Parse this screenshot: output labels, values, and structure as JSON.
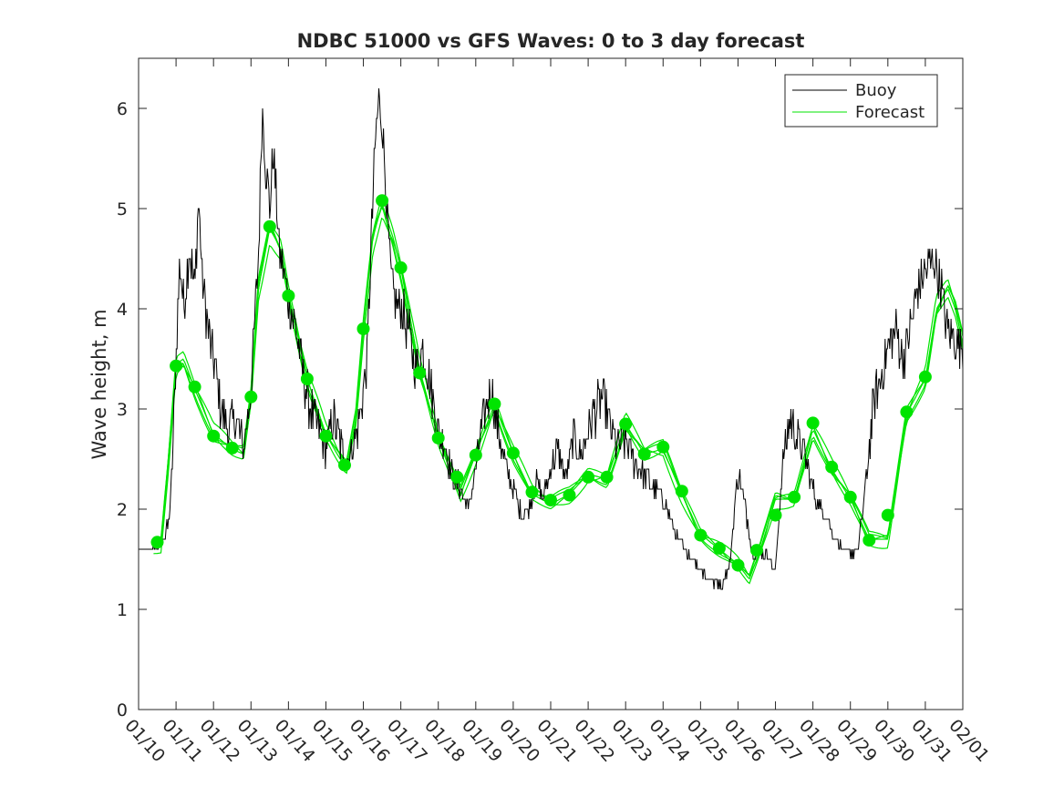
{
  "chart_data": {
    "type": "line",
    "title": "NDBC 51000 vs GFS Waves: 0 to 3 day forecast",
    "xlabel": "",
    "ylabel": "Wave height, m",
    "xlim": [
      0,
      22
    ],
    "ylim": [
      0,
      6.5
    ],
    "grid": false,
    "legend_location": "top-right",
    "categories": [
      "01/10",
      "01/11",
      "01/12",
      "01/13",
      "01/14",
      "01/15",
      "01/16",
      "01/17",
      "01/18",
      "01/19",
      "01/20",
      "01/21",
      "01/22",
      "01/23",
      "01/24",
      "01/25",
      "01/26",
      "01/27",
      "01/28",
      "01/29",
      "01/30",
      "01/31",
      "02/01"
    ],
    "yticks": [
      0,
      1,
      2,
      3,
      4,
      5,
      6
    ],
    "legend": [
      "Buoy",
      "Forecast"
    ],
    "series": [
      {
        "name": "Buoy",
        "color": "#000000",
        "x": [
          0,
          0.3,
          0.5,
          0.7,
          0.85,
          1.0,
          1.1,
          1.2,
          1.35,
          1.5,
          1.6,
          1.7,
          1.85,
          2.0,
          2.2,
          2.4,
          2.6,
          2.8,
          3.0,
          3.2,
          3.3,
          3.4,
          3.5,
          3.6,
          3.75,
          3.9,
          4.0,
          4.2,
          4.4,
          4.6,
          4.8,
          5.0,
          5.2,
          5.35,
          5.5,
          5.7,
          5.9,
          6.1,
          6.2,
          6.3,
          6.4,
          6.5,
          6.6,
          6.7,
          6.8,
          7.0,
          7.2,
          7.4,
          7.6,
          7.8,
          8.0,
          8.2,
          8.4,
          8.6,
          8.8,
          9.0,
          9.2,
          9.4,
          9.6,
          9.8,
          10.0,
          10.2,
          10.4,
          10.6,
          10.8,
          11.0,
          11.2,
          11.4,
          11.6,
          11.8,
          12.0,
          12.2,
          12.4,
          12.6,
          12.8,
          13.0,
          13.2,
          13.4,
          13.6,
          13.8,
          14.0,
          14.2,
          14.4,
          14.6,
          14.8,
          15.0,
          15.2,
          15.4,
          15.6,
          15.8,
          16.0,
          16.2,
          16.4,
          16.6,
          16.8,
          17.0,
          17.2,
          17.4,
          17.6,
          17.8,
          18.0,
          18.2,
          18.4,
          18.6,
          18.8,
          19.0,
          19.2,
          19.4,
          19.6,
          19.8,
          20.0,
          20.2,
          20.4,
          20.6,
          20.8,
          21.0,
          21.2,
          21.4,
          21.5,
          21.6,
          21.8,
          22.0
        ],
        "y": [
          1.6,
          1.6,
          1.65,
          1.7,
          2.0,
          3.5,
          4.5,
          4.0,
          4.6,
          4.2,
          5.1,
          4.3,
          3.8,
          3.5,
          3.0,
          2.8,
          2.9,
          2.6,
          3.2,
          4.5,
          6.0,
          5.4,
          5.0,
          5.6,
          4.6,
          4.3,
          4.1,
          3.8,
          3.3,
          3.0,
          2.8,
          2.6,
          2.9,
          2.7,
          2.5,
          2.6,
          2.9,
          3.5,
          4.6,
          5.5,
          6.1,
          5.9,
          5.2,
          4.5,
          4.1,
          4.0,
          3.8,
          3.4,
          3.6,
          3.2,
          2.8,
          2.6,
          2.3,
          2.2,
          2.0,
          2.4,
          2.9,
          3.2,
          2.8,
          2.4,
          2.2,
          1.95,
          2.0,
          2.3,
          2.1,
          2.4,
          2.6,
          2.3,
          2.7,
          2.5,
          2.8,
          3.0,
          3.1,
          2.8,
          2.6,
          2.7,
          2.5,
          2.4,
          2.3,
          2.2,
          2.1,
          1.9,
          1.7,
          1.6,
          1.5,
          1.4,
          1.3,
          1.25,
          1.25,
          1.5,
          2.4,
          2.0,
          1.5,
          1.6,
          1.5,
          1.4,
          2.5,
          2.9,
          2.7,
          2.5,
          2.2,
          2.0,
          1.9,
          1.7,
          1.6,
          1.55,
          1.6,
          2.2,
          3.0,
          3.3,
          3.6,
          3.8,
          3.5,
          3.8,
          4.2,
          4.4,
          4.5,
          4.3,
          4.0,
          3.8,
          3.7,
          3.6
        ],
        "jitter": 0.25
      },
      {
        "name": "Forecast",
        "color": "#00e400",
        "x": [
          0.4,
          0.6,
          0.8,
          1.0,
          1.2,
          1.5,
          2.0,
          2.5,
          2.8,
          3.0,
          3.2,
          3.5,
          3.8,
          4.0,
          4.5,
          5.0,
          5.3,
          5.55,
          5.8,
          6.0,
          6.25,
          6.5,
          6.8,
          7.0,
          7.5,
          8.0,
          8.3,
          8.6,
          9.0,
          9.5,
          10.0,
          10.5,
          11.0,
          11.5,
          12.0,
          12.5,
          13.0,
          13.5,
          14.0,
          14.5,
          15.0,
          15.5,
          16.0,
          16.3,
          16.6,
          17.0,
          17.5,
          18.0,
          18.5,
          19.0,
          19.5,
          20.0,
          20.5,
          21.0,
          21.3,
          21.6,
          21.8,
          22.0
        ],
        "y": [
          1.62,
          1.65,
          2.5,
          3.45,
          3.5,
          3.2,
          2.75,
          2.6,
          2.55,
          3.1,
          4.2,
          4.8,
          4.6,
          4.15,
          3.3,
          2.75,
          2.55,
          2.4,
          2.9,
          3.8,
          4.7,
          5.05,
          4.7,
          4.4,
          3.4,
          2.7,
          2.4,
          2.15,
          2.55,
          3.05,
          2.55,
          2.15,
          2.05,
          2.15,
          2.35,
          2.3,
          2.85,
          2.55,
          2.6,
          2.15,
          1.75,
          1.6,
          1.45,
          1.3,
          1.6,
          2.1,
          2.1,
          2.8,
          2.4,
          2.1,
          1.7,
          1.7,
          2.95,
          3.3,
          4.0,
          4.2,
          4.0,
          3.65
        ],
        "ensemble_offsets": [
          0.0,
          0.08,
          -0.08,
          0.14,
          -0.12
        ],
        "markers_x": [
          0.5,
          1.0,
          1.5,
          2.0,
          2.5,
          3.0,
          3.5,
          4.0,
          4.5,
          5.0,
          5.5,
          6.0,
          6.5,
          7.0,
          7.5,
          8.0,
          8.5,
          9.0,
          9.5,
          10.0,
          10.5,
          11.0,
          11.5,
          12.0,
          12.5,
          13.0,
          13.5,
          14.0,
          14.5,
          15.0,
          15.5,
          16.0,
          16.5,
          17.0,
          17.5,
          18.0,
          18.5,
          19.0,
          19.5,
          20.0,
          20.5,
          21.0
        ],
        "markers_y": [
          1.67,
          3.43,
          3.22,
          2.73,
          2.61,
          3.12,
          4.82,
          4.13,
          3.3,
          2.73,
          2.44,
          3.8,
          5.08,
          4.41,
          3.36,
          2.71,
          2.32,
          2.54,
          3.05,
          2.56,
          2.17,
          2.09,
          2.14,
          2.32,
          2.32,
          2.85,
          2.55,
          2.62,
          2.18,
          1.74,
          1.61,
          1.44,
          1.59,
          1.94,
          2.12,
          2.86,
          2.42,
          2.12,
          1.69,
          1.94,
          2.97,
          3.32
        ]
      }
    ]
  }
}
